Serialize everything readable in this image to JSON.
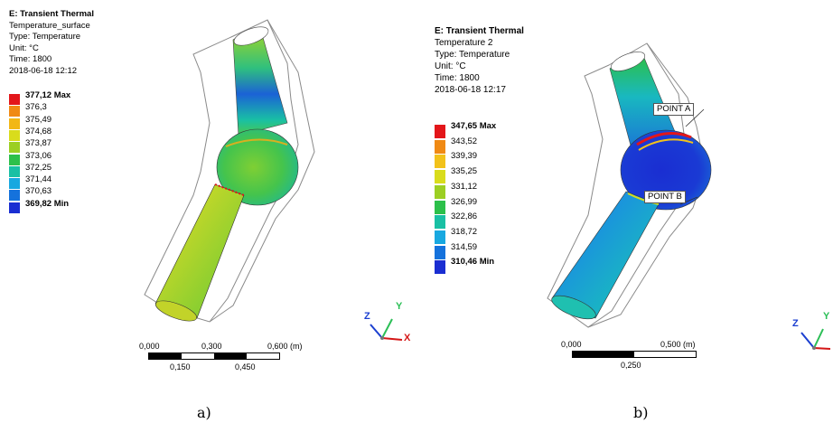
{
  "panel_a": {
    "caption": "a)",
    "info": {
      "title": "E: Transient Thermal",
      "line1": "Temperature_surface",
      "line2": "Type: Temperature",
      "line3": "Unit: °C",
      "line4": "Time: 1800",
      "line5": "2018-06-18 12:12"
    },
    "legend": {
      "colors": [
        "#e3161a",
        "#f08a14",
        "#f2b716",
        "#d9dc1c",
        "#9ccf23",
        "#2cc04a",
        "#19c0a4",
        "#18a8e0",
        "#1572dc",
        "#1a2ed2"
      ],
      "labels": [
        "377,12 Max",
        "376,3",
        "375,49",
        "374,68",
        "373,87",
        "373,06",
        "372,25",
        "371,44",
        "370,63",
        "369,82 Min"
      ]
    },
    "scale": {
      "ticks_top": [
        "0,000",
        "0,300",
        "0,600 (m)"
      ],
      "ticks_bottom": [
        "0,150",
        "0,450"
      ]
    },
    "axes": {
      "z": "Z",
      "y": "Y",
      "x": "X"
    }
  },
  "panel_b": {
    "caption": "b)",
    "info": {
      "title": "E: Transient Thermal",
      "line1": "Temperature 2",
      "line2": "Type: Temperature",
      "line3": "Unit: °C",
      "line4": "Time: 1800",
      "line5": "2018-06-18 12:17"
    },
    "legend": {
      "colors": [
        "#e3161a",
        "#f08a14",
        "#f2c21a",
        "#d9dc1c",
        "#9ccf23",
        "#2cc04a",
        "#19c0a4",
        "#18a8e0",
        "#1572dc",
        "#1a2ed2"
      ],
      "labels": [
        "347,65 Max",
        "343,52",
        "339,39",
        "335,25",
        "331,12",
        "326,99",
        "322,86",
        "318,72",
        "314,59",
        "310,46 Min"
      ]
    },
    "probes": {
      "a": "POINT A",
      "b": "POINT B"
    },
    "scale": {
      "ticks_top": [
        "0,000",
        "0,500 (m)"
      ],
      "ticks_bottom": [
        "0,250"
      ]
    },
    "axes": {
      "z": "Z",
      "y": "Y"
    }
  }
}
